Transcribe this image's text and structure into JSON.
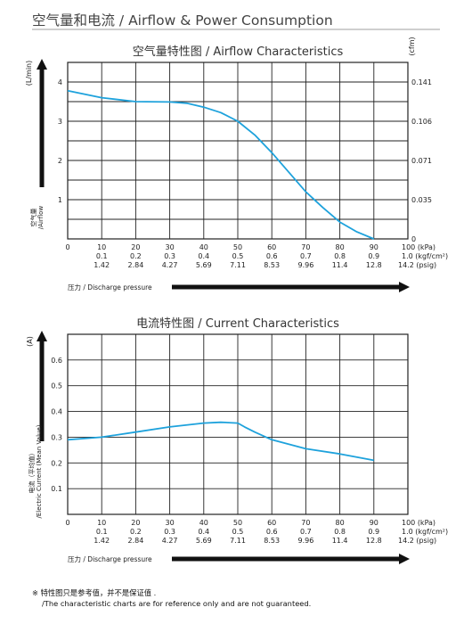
{
  "page": {
    "title": "空气量和电流 / Airflow & Power Consumption"
  },
  "x_axis": {
    "kpa_ticks": [
      "10",
      "20",
      "30",
      "40",
      "50",
      "60",
      "70",
      "80",
      "90",
      "100 (kPa)"
    ],
    "kgf_ticks": [
      "0.1",
      "0.2",
      "0.3",
      "0.4",
      "0.5",
      "0.6",
      "0.7",
      "0.8",
      "0.9",
      "1.0 (kgf/cm²)"
    ],
    "psig_ticks": [
      "1.42",
      "2.84",
      "4.27",
      "5.69",
      "7.11",
      "8.53",
      "9.96",
      "11.4",
      "12.8",
      "14.2 (psig)"
    ],
    "origin_label": "0",
    "pressure_label": "压力 / Discharge pressure"
  },
  "chart_data": [
    {
      "type": "line",
      "title": "空气量特性图 / Airflow Characteristics",
      "ylabel": "空气量 / Airflow",
      "y_unit_left": "(L/min)",
      "y_unit_right": "(cfm)",
      "xlim": [
        0,
        100
      ],
      "ylim": [
        0,
        4.5
      ],
      "y_ticks_left": [
        "1",
        "2",
        "3",
        "4"
      ],
      "y_ticks_right": [
        "0",
        "0.035",
        "0.071",
        "0.106",
        "0.141"
      ],
      "grid": true,
      "series": [
        {
          "x": [
            0,
            10,
            20,
            30,
            35,
            40,
            45,
            50,
            55,
            60,
            65,
            70,
            75,
            80,
            85,
            90
          ],
          "y": [
            3.78,
            3.6,
            3.5,
            3.49,
            3.46,
            3.36,
            3.22,
            3.0,
            2.65,
            2.2,
            1.7,
            1.2,
            0.8,
            0.43,
            0.18,
            0.0
          ]
        }
      ]
    },
    {
      "type": "line",
      "title": "电流特性图 / Current Characteristics",
      "ylabel": "电流（平均值）/Electric Current (Mean Value)",
      "y_unit_left": "(A)",
      "xlim": [
        0,
        100
      ],
      "ylim": [
        0,
        0.7
      ],
      "y_ticks_left": [
        "0.1",
        "0.2",
        "0.3",
        "0.4",
        "0.5",
        "0.6"
      ],
      "grid": true,
      "series": [
        {
          "x": [
            0,
            10,
            20,
            30,
            40,
            45,
            50,
            52,
            55,
            60,
            70,
            80,
            90
          ],
          "y": [
            0.29,
            0.3,
            0.32,
            0.34,
            0.355,
            0.358,
            0.355,
            0.34,
            0.32,
            0.29,
            0.255,
            0.235,
            0.21
          ]
        }
      ]
    }
  ],
  "footnote": {
    "line1": "※ 特性图只是参考值，并不是保证值 .",
    "line2": "/The characteristic charts are for reference only and are not guaranteed."
  },
  "colors": {
    "curve": "#1ea2dc",
    "grid": "#222222",
    "title_rule": "#cfcfcf"
  }
}
